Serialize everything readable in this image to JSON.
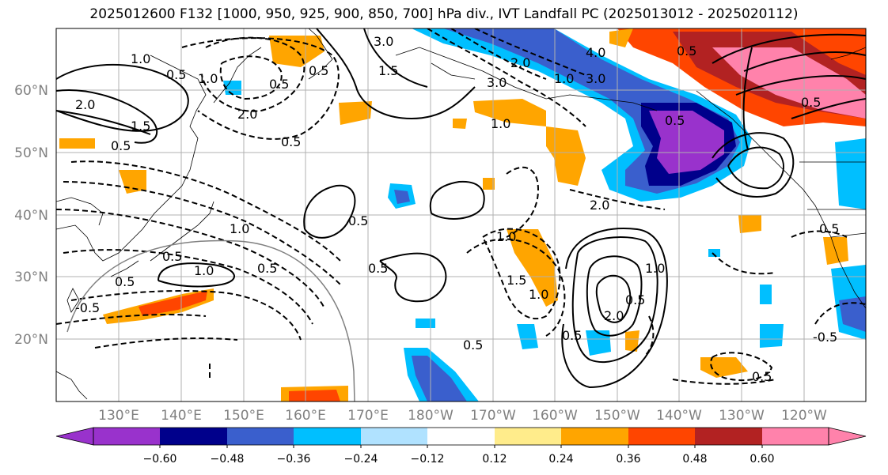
{
  "title": "2025012600 F132 [1000, 950, 925, 900, 850, 700] hPa div., IVT Landfall PC (2025013012 - 2025020112)",
  "lat_labels": [
    "60°N",
    "50°N",
    "40°N",
    "30°N",
    "20°N"
  ],
  "lon_labels": [
    "130°E",
    "140°E",
    "150°E",
    "160°E",
    "170°E",
    "180°W",
    "170°W",
    "160°W",
    "150°W",
    "140°W",
    "130°W",
    "120°W"
  ],
  "colorbar": {
    "ticks": [
      "−0.60",
      "−0.48",
      "−0.36",
      "−0.24",
      "−0.12",
      "0.12",
      "0.24",
      "0.36",
      "0.48",
      "0.60"
    ],
    "colors": [
      "#9932CC",
      "#00008B",
      "#3A5FCD",
      "#00BFFF",
      "#B0E2FF",
      "#FFFFFF",
      "#FFEC8B",
      "#FFA500",
      "#FF4500",
      "#B22222",
      "#FF82AB"
    ]
  },
  "contour_labels": [
    "1.0",
    "0.5",
    "2.0",
    "1.5",
    "0.5",
    "3.0",
    "1.5",
    "0.5",
    "2.0",
    "1.0",
    "0.5",
    "4.0",
    "3.0",
    "3.0",
    "2.0",
    "1.0",
    "0.5",
    "1.0",
    "0.5",
    "1.0",
    "0.5",
    "0.5",
    "1.0",
    "0.5",
    "0.5",
    "1.0",
    "1.0",
    "0.5",
    "2.0",
    "1.5",
    "0.5",
    "1.0",
    "0.5",
    "2.0",
    "0.5",
    "0.5",
    "0.5",
    "0.5",
    "-0.5",
    "0.5",
    "-0.5"
  ]
}
